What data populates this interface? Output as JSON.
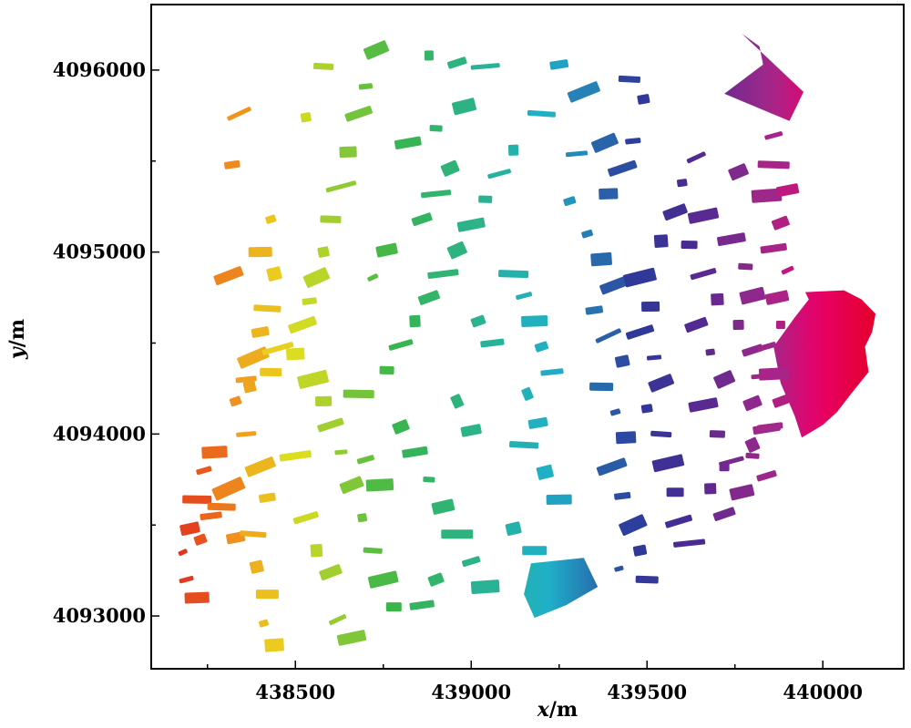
{
  "chart_data": {
    "type": "scatter",
    "title": "",
    "xlabel": "x/m",
    "ylabel": "y/m",
    "xlabel_var": "x",
    "xlabel_unit": "/m",
    "ylabel_var": "y",
    "ylabel_unit": "/m",
    "xlim": [
      438090,
      440230
    ],
    "ylim": [
      4092710,
      4096360
    ],
    "x_ticks": [
      438500,
      439000,
      439500,
      440000
    ],
    "y_ticks": [
      4093000,
      4094000,
      4095000,
      4096000
    ],
    "x_tick_labels": [
      "438500",
      "439000",
      "439500",
      "440000"
    ],
    "y_tick_labels": [
      "4093000",
      "4094000",
      "4095000",
      "4096000"
    ],
    "grid": false,
    "legend": "none",
    "colormap": "hue gradient by x (red → orange → yellow → green → cyan → blue → indigo → purple → magenta → red)",
    "colors": [
      "#e0221e",
      "#f0901e",
      "#e8e01e",
      "#39b54a",
      "#1fb0c8",
      "#2e3a9a",
      "#4a2a92",
      "#a2288a",
      "#e8006a",
      "#e4002b"
    ],
    "series": [
      {
        "regions": [
          {
            "x": [
              439770,
              439945,
              439905,
              439720,
              439830,
              439820
            ],
            "y": [
              4096200,
              4095880,
              4095720,
              4095870,
              4096030,
              4096130
            ]
          },
          {
            "x": [
              439950,
              440060,
              440110,
              440150,
              440140,
              440120,
              440130,
              440080,
              440040,
              440000,
              439940,
              439920,
              439880,
              439860,
              439920,
              439960
            ],
            "y": [
              4094780,
              4094790,
              4094740,
              4094660,
              4094560,
              4094480,
              4094340,
              4094220,
              4094120,
              4094050,
              4093980,
              4094100,
              4094280,
              4094480,
              4094640,
              4094740
            ]
          },
          {
            "x": [
              439170,
              439320,
              439360,
              439270,
              439180,
              439150
            ],
            "y": [
              4093290,
              4093320,
              4093160,
              4093060,
              4092990,
              4093120
            ]
          }
        ],
        "points": [
          [
            438180,
            4093350
          ],
          [
            438200,
            4093480
          ],
          [
            438220,
            4093640
          ],
          [
            438240,
            4093800
          ],
          [
            438270,
            4093900
          ],
          [
            438230,
            4093420
          ],
          [
            438260,
            4093550
          ],
          [
            438310,
            4093700
          ],
          [
            438330,
            4093430
          ],
          [
            438290,
            4093600
          ],
          [
            438190,
            4093200
          ],
          [
            438220,
            4093100
          ],
          [
            438330,
            4094180
          ],
          [
            438360,
            4094300
          ],
          [
            438380,
            4094420
          ],
          [
            438400,
            4094560
          ],
          [
            438420,
            4094690
          ],
          [
            438440,
            4094880
          ],
          [
            438400,
            4095000
          ],
          [
            438430,
            4095180
          ],
          [
            438360,
            4094000
          ],
          [
            438400,
            4093820
          ],
          [
            438420,
            4093650
          ],
          [
            438380,
            4093450
          ],
          [
            438390,
            4093270
          ],
          [
            438420,
            4093120
          ],
          [
            438410,
            4092960
          ],
          [
            438440,
            4092840
          ],
          [
            438310,
            4094870
          ],
          [
            438320,
            4095480
          ],
          [
            438340,
            4095760
          ],
          [
            438370,
            4094260
          ],
          [
            438430,
            4094340
          ],
          [
            438450,
            4094470
          ],
          [
            438500,
            4094440
          ],
          [
            438520,
            4094600
          ],
          [
            438540,
            4094730
          ],
          [
            438560,
            4094860
          ],
          [
            438580,
            4095000
          ],
          [
            438600,
            4095180
          ],
          [
            438630,
            4095360
          ],
          [
            438650,
            4095550
          ],
          [
            438680,
            4095760
          ],
          [
            438700,
            4095910
          ],
          [
            438730,
            4096110
          ],
          [
            438530,
            4095740
          ],
          [
            438580,
            4096020
          ],
          [
            438550,
            4094300
          ],
          [
            438580,
            4094180
          ],
          [
            438600,
            4094050
          ],
          [
            438630,
            4093900
          ],
          [
            438660,
            4093720
          ],
          [
            438690,
            4093540
          ],
          [
            438720,
            4093360
          ],
          [
            438750,
            4093200
          ],
          [
            438780,
            4093050
          ],
          [
            438530,
            4093540
          ],
          [
            438560,
            4093360
          ],
          [
            438600,
            4093240
          ],
          [
            438500,
            4093880
          ],
          [
            438620,
            4092980
          ],
          [
            438660,
            4092880
          ],
          [
            438760,
            4094350
          ],
          [
            438800,
            4094490
          ],
          [
            438840,
            4094620
          ],
          [
            438880,
            4094750
          ],
          [
            438920,
            4094880
          ],
          [
            438960,
            4095010
          ],
          [
            439000,
            4095150
          ],
          [
            439040,
            4095290
          ],
          [
            439080,
            4095430
          ],
          [
            439120,
            4095560
          ],
          [
            438860,
            4095180
          ],
          [
            438900,
            4095320
          ],
          [
            438940,
            4095460
          ],
          [
            438820,
            4095600
          ],
          [
            438900,
            4095680
          ],
          [
            438980,
            4095800
          ],
          [
            438880,
            4096080
          ],
          [
            438960,
            4096040
          ],
          [
            439040,
            4096020
          ],
          [
            438800,
            4094040
          ],
          [
            438840,
            4093900
          ],
          [
            438880,
            4093750
          ],
          [
            438920,
            4093600
          ],
          [
            438960,
            4093450
          ],
          [
            439000,
            4093300
          ],
          [
            439040,
            4093160
          ],
          [
            438900,
            4093200
          ],
          [
            438860,
            4093060
          ],
          [
            438720,
            4094860
          ],
          [
            438760,
            4095010
          ],
          [
            438680,
            4094220
          ],
          [
            438700,
            4093860
          ],
          [
            438740,
            4093720
          ],
          [
            439020,
            4094620
          ],
          [
            439060,
            4094500
          ],
          [
            438960,
            4094180
          ],
          [
            439000,
            4094020
          ],
          [
            439120,
            4094880
          ],
          [
            439150,
            4094760
          ],
          [
            439180,
            4094620
          ],
          [
            439200,
            4094480
          ],
          [
            439230,
            4094340
          ],
          [
            439160,
            4094220
          ],
          [
            439190,
            4094060
          ],
          [
            439150,
            4093940
          ],
          [
            439210,
            4093790
          ],
          [
            439250,
            4093640
          ],
          [
            439280,
            4095280
          ],
          [
            439300,
            4095540
          ],
          [
            439320,
            4095880
          ],
          [
            439250,
            4096030
          ],
          [
            439200,
            4095760
          ],
          [
            439120,
            4093480
          ],
          [
            439180,
            4093360
          ],
          [
            439330,
            4095100
          ],
          [
            439370,
            4094960
          ],
          [
            439410,
            4094820
          ],
          [
            439350,
            4094680
          ],
          [
            439390,
            4094540
          ],
          [
            439430,
            4094400
          ],
          [
            439370,
            4094260
          ],
          [
            439410,
            4094120
          ],
          [
            439440,
            4093980
          ],
          [
            439400,
            4093820
          ],
          [
            439430,
            4093660
          ],
          [
            439460,
            4093500
          ],
          [
            439480,
            4093360
          ],
          [
            439500,
            4093200
          ],
          [
            439420,
            4093260
          ],
          [
            439390,
            4095320
          ],
          [
            439430,
            4095460
          ],
          [
            439460,
            4095610
          ],
          [
            439380,
            4095600
          ],
          [
            439490,
            4095840
          ],
          [
            439450,
            4095950
          ],
          [
            439480,
            4094860
          ],
          [
            439510,
            4094700
          ],
          [
            439480,
            4094560
          ],
          [
            439520,
            4094420
          ],
          [
            439540,
            4094280
          ],
          [
            439500,
            4094140
          ],
          [
            439540,
            4094000
          ],
          [
            439560,
            4093840
          ],
          [
            439580,
            4093680
          ],
          [
            439590,
            4093520
          ],
          [
            439540,
            4095060
          ],
          [
            439580,
            4095220
          ],
          [
            439600,
            4095380
          ],
          [
            439640,
            4095520
          ],
          [
            439660,
            4095200
          ],
          [
            439620,
            4095040
          ],
          [
            439660,
            4094880
          ],
          [
            439700,
            4094740
          ],
          [
            439640,
            4094600
          ],
          [
            439680,
            4094450
          ],
          [
            439720,
            4094300
          ],
          [
            439660,
            4094160
          ],
          [
            439700,
            4094000
          ],
          [
            439740,
            4093850
          ],
          [
            439680,
            4093700
          ],
          [
            439720,
            4093560
          ],
          [
            439620,
            4093400
          ],
          [
            439760,
            4095440
          ],
          [
            439740,
            4095070
          ],
          [
            439780,
            4094920
          ],
          [
            439800,
            4094760
          ],
          [
            439760,
            4094600
          ],
          [
            439800,
            4094460
          ],
          [
            439840,
            4094320
          ],
          [
            439800,
            4094170
          ],
          [
            439840,
            4094030
          ],
          [
            439800,
            4093880
          ],
          [
            439770,
            4093680
          ],
          [
            439720,
            4093820
          ],
          [
            439840,
            4093770
          ],
          [
            439840,
            4095310
          ],
          [
            439880,
            4095160
          ],
          [
            439860,
            4095020
          ],
          [
            439900,
            4094900
          ],
          [
            439870,
            4094750
          ],
          [
            439880,
            4094600
          ],
          [
            439840,
            4094480
          ],
          [
            439860,
            4094330
          ],
          [
            439880,
            4094180
          ],
          [
            439850,
            4094040
          ],
          [
            439800,
            4093940
          ],
          [
            439900,
            4095340
          ],
          [
            439860,
            4095480
          ],
          [
            439860,
            4095640
          ]
        ]
      }
    ]
  }
}
